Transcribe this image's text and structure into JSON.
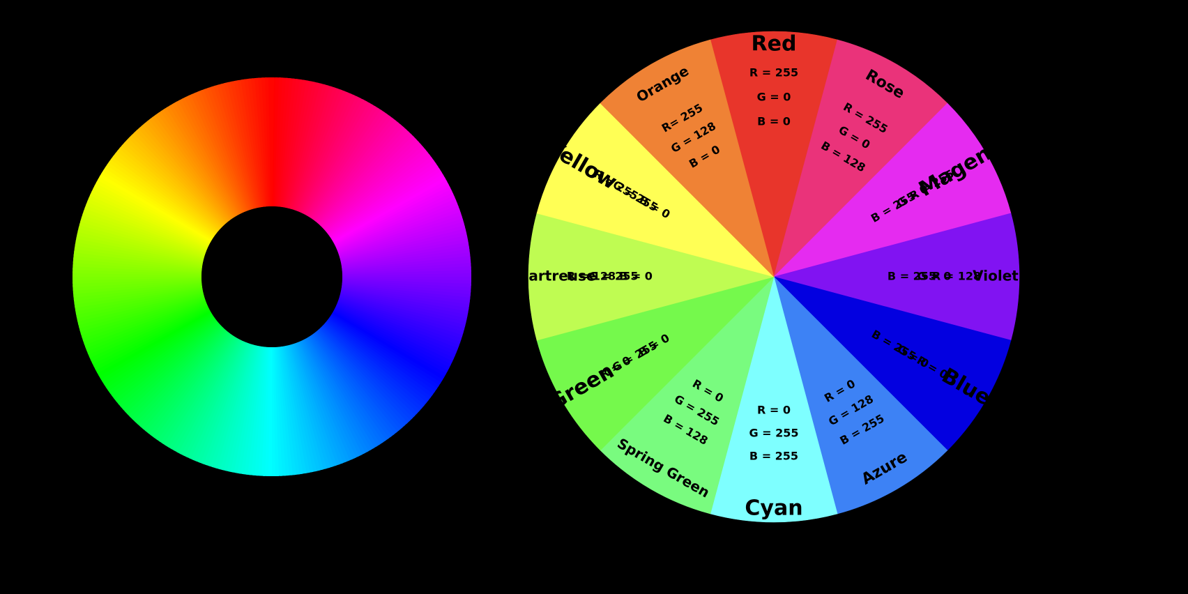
{
  "gradient_wheel": {
    "stops": [
      "#FF0000",
      "#FF0080",
      "#FF00FF",
      "#8000FF",
      "#0000FF",
      "#0080FF",
      "#00FFFF",
      "#00FF80",
      "#00FF00",
      "#80FF00",
      "#FFFF00",
      "#FF8000"
    ]
  },
  "segment_wheel": {
    "segments": [
      {
        "name": "Red",
        "color": "#E8352B",
        "r": "R = 255",
        "g": "G = 0",
        "b": "B = 0"
      },
      {
        "name": "Rose",
        "color": "#EA337A",
        "r": "R = 255",
        "g": "G = 0",
        "b": "B = 128"
      },
      {
        "name": "Magenta",
        "color": "#E52BF0",
        "r": "R = 255",
        "g": "G = 0",
        "b": "B = 255"
      },
      {
        "name": "Violet",
        "color": "#8113F2",
        "r": "R = 128",
        "g": "G = 0",
        "b": "B = 255"
      },
      {
        "name": "Blue",
        "color": "#0300E0",
        "r": "R = 0",
        "g": "G = 0",
        "b": "B = 255"
      },
      {
        "name": "Azure",
        "color": "#3D82F5",
        "r": "R = 0",
        "g": "G = 128",
        "b": "B = 255"
      },
      {
        "name": "Cyan",
        "color": "#7EFFFF",
        "r": "R = 0",
        "g": "G = 255",
        "b": "B = 255"
      },
      {
        "name": "Spring Green",
        "color": "#79FB7F",
        "r": "R = 0",
        "g": "G = 255",
        "b": "B = 128"
      },
      {
        "name": "Green",
        "color": "#75F94C",
        "r": "R = 0",
        "g": "G = 255",
        "b": "B = 0"
      },
      {
        "name": "Chartreuse",
        "color": "#BFFC52",
        "r": "R = 128",
        "g": "G = 255",
        "b": "B = 0"
      },
      {
        "name": "Yellow",
        "color": "#FFFF55",
        "r": "R = 255",
        "g": "G = 255",
        "b": "B = 0"
      },
      {
        "name": "Orange",
        "color": "#EF8235",
        "r": "R= 255",
        "g": "G = 128",
        "b": "B = 0"
      }
    ]
  }
}
